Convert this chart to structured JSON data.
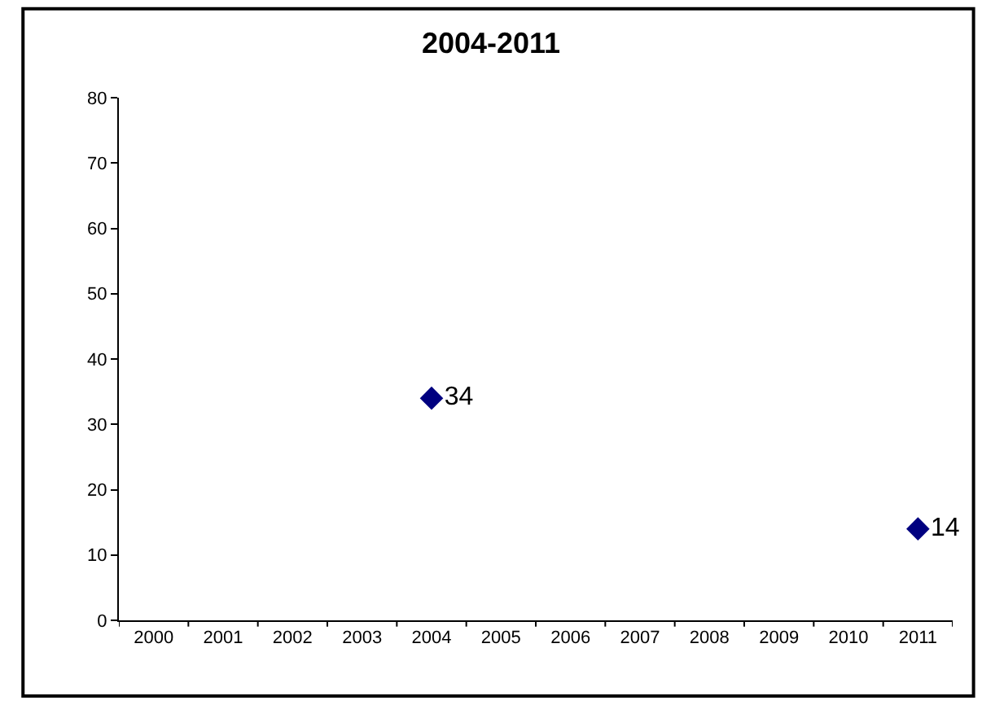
{
  "chart_data": {
    "type": "scatter",
    "title": "2004-2011",
    "categories": [
      "2000",
      "2001",
      "2002",
      "2003",
      "2004",
      "2005",
      "2006",
      "2007",
      "2008",
      "2009",
      "2010",
      "2011"
    ],
    "series": [
      {
        "color": "#000080",
        "values": [
          null,
          null,
          null,
          null,
          34,
          null,
          null,
          null,
          null,
          null,
          null,
          14
        ]
      }
    ],
    "ylim": [
      0,
      80
    ],
    "yticks": [
      0,
      10,
      20,
      30,
      40,
      50,
      60,
      70,
      80
    ],
    "marker": "diamond",
    "data_labels": true
  }
}
